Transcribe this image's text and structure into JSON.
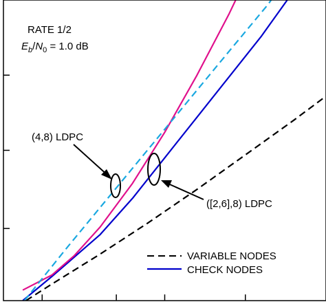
{
  "chart_data": {
    "type": "line",
    "title": "",
    "xlabel": "",
    "ylabel": "",
    "xlim": [
      0,
      10
    ],
    "ylim": [
      0,
      10
    ],
    "grid": false,
    "legend_position": "bottom-right",
    "annotations": {
      "rate": "RATE 1/2",
      "ebn0": {
        "E": "E",
        "b": "b",
        "slash": "/",
        "N": "N",
        "zero": "0",
        "rest": " = 1.0 dB"
      },
      "ldpc_regular": "(4,8) LDPC",
      "ldpc_irregular": "([2,6],8) LDPC"
    },
    "legend": [
      {
        "label": "VARIABLE NODES",
        "dash": "dashed",
        "color": "#000000"
      },
      {
        "label": "CHECK NODES",
        "dash": "solid",
        "color": "#0000cc"
      }
    ],
    "series": [
      {
        "color": "#000000",
        "dash": "dashed",
        "points": [
          [
            0.7,
            0.0
          ],
          [
            1.5,
            0.55
          ],
          [
            3,
            1.55
          ],
          [
            4.5,
            2.6
          ],
          [
            6,
            3.7
          ],
          [
            7.5,
            4.85
          ],
          [
            9,
            6.0
          ],
          [
            10,
            6.8
          ]
        ]
      },
      {
        "color": "#0000cc",
        "dash": "solid",
        "points": [
          [
            0.6,
            0.0
          ],
          [
            1.5,
            0.8
          ],
          [
            2.2,
            1.45
          ],
          [
            3,
            2.2
          ],
          [
            4,
            3.4
          ],
          [
            5,
            4.75
          ],
          [
            6,
            6.1
          ],
          [
            7,
            7.45
          ],
          [
            8,
            8.8
          ],
          [
            8.8,
            10.0
          ]
        ]
      },
      {
        "color": "#e0108c",
        "dash": "solid",
        "points": [
          [
            0.6,
            0.35
          ],
          [
            1.5,
            0.85
          ],
          [
            2.2,
            1.5
          ],
          [
            3,
            2.45
          ],
          [
            4,
            3.9
          ],
          [
            5,
            5.6
          ],
          [
            6,
            7.5
          ],
          [
            7,
            9.55
          ],
          [
            7.2,
            10.0
          ]
        ]
      },
      {
        "color": "#1aa8e0",
        "dash": "dashed",
        "points": [
          [
            0.65,
            0.0
          ],
          [
            2,
            1.8
          ],
          [
            3,
            3.1
          ],
          [
            4,
            4.4
          ],
          [
            5,
            5.7
          ],
          [
            6,
            7.0
          ],
          [
            7,
            8.3
          ],
          [
            8.2,
            9.85
          ],
          [
            8.3,
            10.0
          ]
        ]
      }
    ]
  }
}
